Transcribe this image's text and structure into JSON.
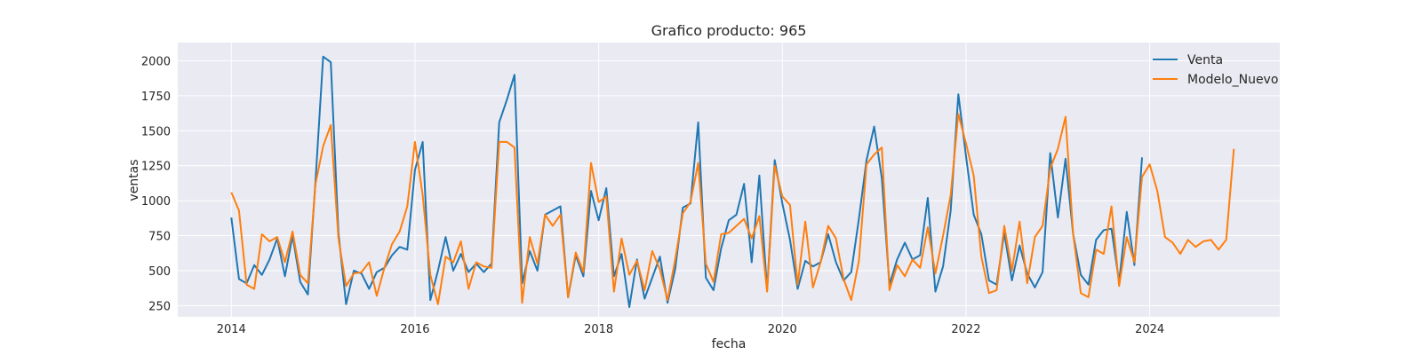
{
  "chart_data": {
    "type": "line",
    "title": "Grafico producto: 965",
    "xlabel": "fecha",
    "ylabel": "ventas",
    "x_ticks": [
      "2014",
      "2016",
      "2018",
      "2020",
      "2022",
      "2024"
    ],
    "y_ticks": [
      "250",
      "500",
      "750",
      "1000",
      "1250",
      "1500",
      "1750",
      "2000"
    ],
    "ylim": [
      170,
      2130
    ],
    "xlim": [
      "2013-06",
      "2025-06"
    ],
    "x_start": "2014-01",
    "grid": true,
    "legend_position": "top-right",
    "colors": {
      "plot_background": "#eaeaf2",
      "grid": "#ffffff"
    },
    "series": [
      {
        "name": "Venta",
        "color": "#1f77b4",
        "values": [
          880,
          440,
          410,
          540,
          470,
          580,
          730,
          460,
          750,
          420,
          330,
          1140,
          2030,
          1990,
          770,
          260,
          500,
          480,
          370,
          490,
          520,
          610,
          670,
          650,
          1220,
          1420,
          290,
          500,
          740,
          500,
          620,
          490,
          550,
          490,
          550,
          1560,
          1720,
          1900,
          410,
          640,
          500,
          900,
          930,
          960,
          310,
          610,
          460,
          1070,
          860,
          1090,
          460,
          620,
          240,
          580,
          300,
          450,
          600,
          270,
          510,
          950,
          980,
          1560,
          450,
          360,
          660,
          860,
          900,
          1120,
          560,
          1180,
          360,
          1290,
          980,
          720,
          370,
          570,
          530,
          560,
          760,
          560,
          430,
          490,
          870,
          1290,
          1530,
          1160,
          400,
          580,
          700,
          580,
          610,
          1020,
          350,
          530,
          930,
          1760,
          1320,
          900,
          760,
          430,
          400,
          770,
          430,
          680,
          480,
          380,
          490,
          1340,
          880,
          1300,
          760,
          470,
          400,
          720,
          790,
          800,
          420,
          920,
          540,
          1310
        ]
      },
      {
        "name": "Modelo_Nuevo",
        "color": "#ff7f0e",
        "values": [
          1060,
          930,
          400,
          370,
          760,
          710,
          740,
          560,
          780,
          470,
          410,
          1120,
          1390,
          1540,
          730,
          390,
          480,
          490,
          560,
          320,
          520,
          690,
          780,
          960,
          1420,
          1040,
          470,
          260,
          600,
          560,
          710,
          370,
          560,
          530,
          520,
          1420,
          1420,
          1380,
          270,
          740,
          550,
          900,
          820,
          900,
          310,
          630,
          490,
          1270,
          990,
          1030,
          350,
          730,
          470,
          570,
          360,
          640,
          510,
          290,
          580,
          910,
          990,
          1270,
          550,
          420,
          760,
          770,
          820,
          870,
          730,
          890,
          350,
          1250,
          1030,
          970,
          400,
          850,
          380,
          560,
          820,
          730,
          440,
          290,
          570,
          1260,
          1330,
          1380,
          360,
          540,
          460,
          580,
          520,
          810,
          480,
          750,
          1040,
          1620,
          1410,
          1180,
          600,
          340,
          360,
          820,
          500,
          850,
          410,
          740,
          820,
          1230,
          1370,
          1600,
          760,
          340,
          310,
          650,
          620,
          960,
          390,
          740,
          560,
          1170,
          1260,
          1070,
          740,
          700,
          620,
          720,
          670,
          710,
          720,
          650,
          720,
          1370
        ]
      }
    ]
  }
}
